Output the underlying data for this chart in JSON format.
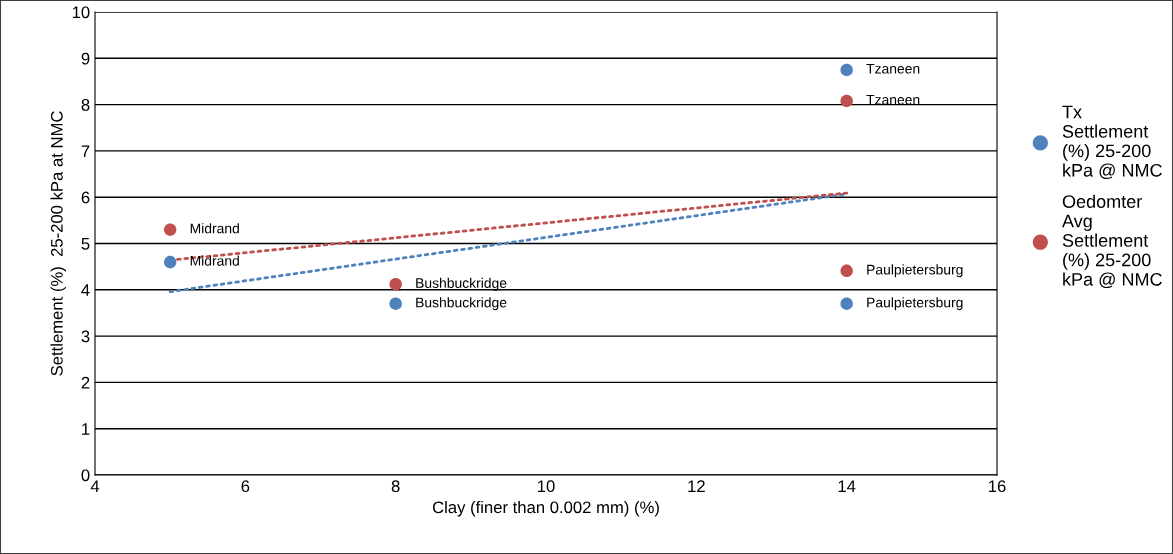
{
  "chart_data": {
    "type": "scatter",
    "xlabel": "Clay (finer than 0.002 mm) (%)",
    "ylabel": "Settlement (%)  25-200 kPa at NMC",
    "xlim": [
      4,
      16
    ],
    "xticks": [
      4,
      6,
      8,
      10,
      12,
      14,
      16
    ],
    "ylim": [
      0,
      10
    ],
    "yticks": [
      0,
      1,
      2,
      3,
      4,
      5,
      6,
      7,
      8,
      9,
      10
    ],
    "grid": "y",
    "legend": "right",
    "series": [
      {
        "name": "Tx Settlement (%) 25-200 kPa @ NMC",
        "marker": "circle",
        "color": "#4f81bd",
        "x": [
          5,
          8,
          14,
          14
        ],
        "values": [
          4.6,
          3.7,
          8.75,
          3.7
        ]
      },
      {
        "name": "Oedomter Avg Settlement (%) 25-200 kPa @ NMC",
        "marker": "circle",
        "color": "#c0504d",
        "x": [
          5,
          8,
          14,
          14
        ],
        "values": [
          5.3,
          4.12,
          8.08,
          4.41
        ]
      },
      {
        "type": "line",
        "marker": "none",
        "color": "#4f81bd",
        "line_style": "dotted",
        "x": [
          5,
          14
        ],
        "values": [
          3.96,
          6.07
        ]
      },
      {
        "type": "line",
        "marker": "none",
        "color": "#c0504d",
        "line_style": "dotted",
        "x": [
          5,
          14
        ],
        "values": [
          4.64,
          6.09
        ]
      }
    ],
    "annotations": [
      {
        "text": "Midrand",
        "x": 5,
        "y": 4.6
      },
      {
        "text": "Bushbuckridge",
        "x": 8,
        "y": 3.7
      },
      {
        "text": "Tzaneen",
        "x": 14,
        "y": 8.75
      },
      {
        "text": "Paulpietersburg",
        "x": 14,
        "y": 3.7
      },
      {
        "text": "Midrand",
        "x": 5,
        "y": 5.3
      },
      {
        "text": "Bushbuckridge",
        "x": 8,
        "y": 4.12
      },
      {
        "text": "Tzaneen",
        "x": 14,
        "y": 8.08
      },
      {
        "text": "Paulpietersburg",
        "x": 14,
        "y": 4.41
      }
    ]
  }
}
